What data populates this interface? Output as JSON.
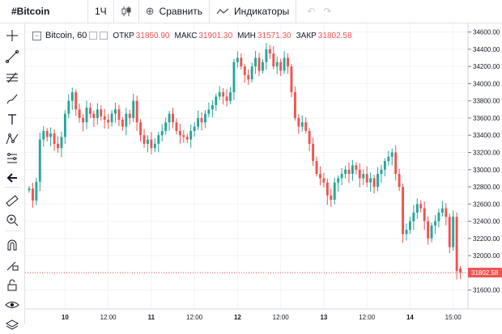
{
  "toolbar": {
    "symbol": "#Bitcoin",
    "interval": "1Ч",
    "compare_label": "Сравнить",
    "indicators_label": "Индикаторы"
  },
  "sidebar": {
    "tools": [
      "cursor-cross-icon",
      "trend-line-icon",
      "fib-icon",
      "brush-icon",
      "text-icon",
      "pattern-icon",
      "prediction-icon",
      "back-arrow-icon",
      "ruler-icon",
      "zoom-in-icon",
      "magnet-icon",
      "lock-draw-icon",
      "lock-icon",
      "eye-icon",
      "layers-icon"
    ]
  },
  "legend": {
    "title": "Bitcoin, 60",
    "open_label": "ОТКР",
    "open_value": "31850.90",
    "high_label": "МАКС",
    "high_value": "31901.30",
    "low_label": "МИН",
    "low_value": "31571.30",
    "close_label": "ЗАКР",
    "close_value": "31802.58"
  },
  "colors": {
    "up": "#26a69a",
    "down": "#ef5350",
    "grid": "#f0f3fa",
    "axis_text": "#131722"
  },
  "chart_data": {
    "type": "candlestick",
    "title": "Bitcoin, 60",
    "ylim": [
      31380,
      34700
    ],
    "y_ticks": [
      31600,
      31800,
      32000,
      32200,
      32400,
      32600,
      32800,
      33000,
      33200,
      33400,
      33600,
      33800,
      34000,
      34200,
      34400,
      34600
    ],
    "y_tick_labels": [
      "31600.00",
      "31800.00",
      "32000.00",
      "32200.00",
      "32400.00",
      "32600.00",
      "32800.00",
      "33000.00",
      "33200.00",
      "33400.00",
      "33600.00",
      "33800.00",
      "34000.00",
      "34200.00",
      "34400.00",
      "34600.00"
    ],
    "x_start_hour": 0,
    "x_end_hour": 121,
    "x_ticks": [
      {
        "hour": 10,
        "label": "10"
      },
      {
        "hour": 22,
        "label": "12:00"
      },
      {
        "hour": 34,
        "label": "11"
      },
      {
        "hour": 46,
        "label": "12:00"
      },
      {
        "hour": 58,
        "label": "12"
      },
      {
        "hour": 70,
        "label": "12:00"
      },
      {
        "hour": 82,
        "label": "13"
      },
      {
        "hour": 94,
        "label": "12:00"
      },
      {
        "hour": 106,
        "label": "14"
      },
      {
        "hour": 118,
        "label": "15:00"
      }
    ],
    "last_price": 31802.58,
    "last_price_label": "31802.58",
    "closes": [
      32780,
      32640,
      32860,
      33350,
      33450,
      33380,
      33420,
      33300,
      33250,
      33380,
      33650,
      33800,
      33900,
      33700,
      33600,
      33550,
      33720,
      33650,
      33600,
      33700,
      33620,
      33580,
      33550,
      33650,
      33700,
      33580,
      33500,
      33650,
      33600,
      33800,
      33550,
      33400,
      33300,
      33350,
      33250,
      33300,
      33400,
      33450,
      33550,
      33650,
      33550,
      33450,
      33400,
      33380,
      33350,
      33450,
      33500,
      33600,
      33550,
      33650,
      33700,
      33750,
      33850,
      33900,
      33850,
      33800,
      33900,
      34250,
      34300,
      34200,
      34100,
      34050,
      34200,
      34300,
      34150,
      34250,
      34400,
      34350,
      34200,
      34250,
      34150,
      34300,
      34200,
      33900,
      33600,
      33500,
      33550,
      33450,
      33300,
      33100,
      32950,
      32900,
      32850,
      32700,
      32650,
      32850,
      32900,
      32950,
      33000,
      32950,
      33050,
      33000,
      32900,
      32950,
      32850,
      32900,
      32800,
      32950,
      33000,
      33100,
      33150,
      33200,
      32950,
      32800,
      32250,
      32300,
      32400,
      32500,
      32600,
      32550,
      32400,
      32200,
      32350,
      32400,
      32500,
      32550,
      32450,
      32100,
      32450,
      31820,
      31800
    ],
    "opens": [
      32760,
      32780,
      32640,
      32860,
      33350,
      33450,
      33380,
      33420,
      33300,
      33250,
      33380,
      33650,
      33800,
      33900,
      33700,
      33600,
      33550,
      33720,
      33650,
      33600,
      33700,
      33620,
      33580,
      33550,
      33650,
      33700,
      33580,
      33500,
      33650,
      33600,
      33800,
      33550,
      33400,
      33300,
      33350,
      33250,
      33300,
      33400,
      33450,
      33550,
      33650,
      33550,
      33450,
      33400,
      33380,
      33350,
      33450,
      33500,
      33600,
      33550,
      33650,
      33700,
      33750,
      33850,
      33900,
      33850,
      33800,
      33900,
      34250,
      34300,
      34200,
      34100,
      34050,
      34200,
      34300,
      34150,
      34250,
      34400,
      34350,
      34200,
      34250,
      34150,
      34300,
      34200,
      33900,
      33600,
      33500,
      33550,
      33450,
      33300,
      33100,
      32950,
      32900,
      32850,
      32700,
      32650,
      32850,
      32900,
      32950,
      33000,
      32950,
      33050,
      33000,
      32900,
      32950,
      32850,
      32900,
      32800,
      32950,
      33000,
      33100,
      33150,
      33200,
      32950,
      32800,
      32250,
      32300,
      32400,
      32500,
      32600,
      32550,
      32400,
      32200,
      32350,
      32400,
      32500,
      32550,
      32450,
      32100,
      32450,
      31850
    ]
  }
}
